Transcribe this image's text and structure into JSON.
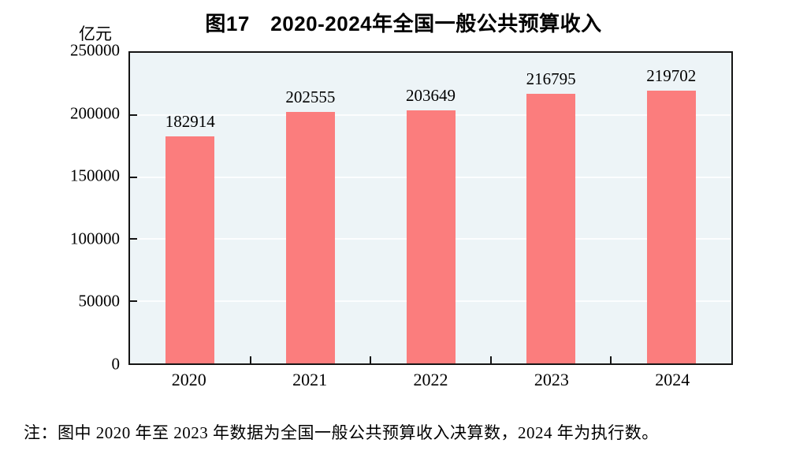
{
  "chart_data": {
    "type": "bar",
    "title": "图17　2020-2024年全国一般公共预算收入",
    "unit_label": "亿元",
    "categories": [
      "2020",
      "2021",
      "2022",
      "2023",
      "2024"
    ],
    "values": [
      182914,
      202555,
      203649,
      216795,
      219702
    ],
    "xlabel": "",
    "ylabel": "亿元",
    "ylim": [
      0,
      250000
    ],
    "yticks": [
      0,
      50000,
      100000,
      150000,
      200000,
      250000
    ],
    "grid": true,
    "legend_position": "none",
    "colors": {
      "bar": "#FB7D7D",
      "plot_background": "#EDF4F7",
      "gridline": "#FAFCFD",
      "axis": "#141414",
      "text": "#000000"
    }
  },
  "note": "注：图中 2020 年至 2023 年数据为全国一般公共预算收入决算数，2024 年为执行数。"
}
